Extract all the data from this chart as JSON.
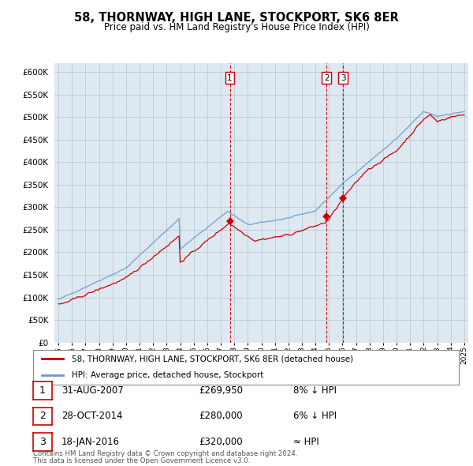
{
  "title": "58, THORNWAY, HIGH LANE, STOCKPORT, SK6 8ER",
  "subtitle": "Price paid vs. HM Land Registry's House Price Index (HPI)",
  "legend_line1": "58, THORNWAY, HIGH LANE, STOCKPORT, SK6 8ER (detached house)",
  "legend_line2": "HPI: Average price, detached house, Stockport",
  "transactions": [
    {
      "num": 1,
      "date": "31-AUG-2007",
      "price": 269950,
      "rel": "8% ↓ HPI",
      "x_year": 2007.67
    },
    {
      "num": 2,
      "date": "28-OCT-2014",
      "price": 280000,
      "rel": "6% ↓ HPI",
      "x_year": 2014.83
    },
    {
      "num": 3,
      "date": "18-JAN-2016",
      "price": 320000,
      "rel": "≈ HPI",
      "x_year": 2016.05
    }
  ],
  "footer1": "Contains HM Land Registry data © Crown copyright and database right 2024.",
  "footer2": "This data is licensed under the Open Government Licence v3.0.",
  "hpi_color": "#6699cc",
  "price_color": "#cc0000",
  "ylim": [
    0,
    620000
  ],
  "yticks": [
    0,
    50000,
    100000,
    150000,
    200000,
    250000,
    300000,
    350000,
    400000,
    450000,
    500000,
    550000,
    600000
  ],
  "xlim_start": 1994.7,
  "xlim_end": 2025.3,
  "background_color": "#ffffff",
  "plot_bg_color": "#dde8f0",
  "grid_color": "#b8ccd8"
}
